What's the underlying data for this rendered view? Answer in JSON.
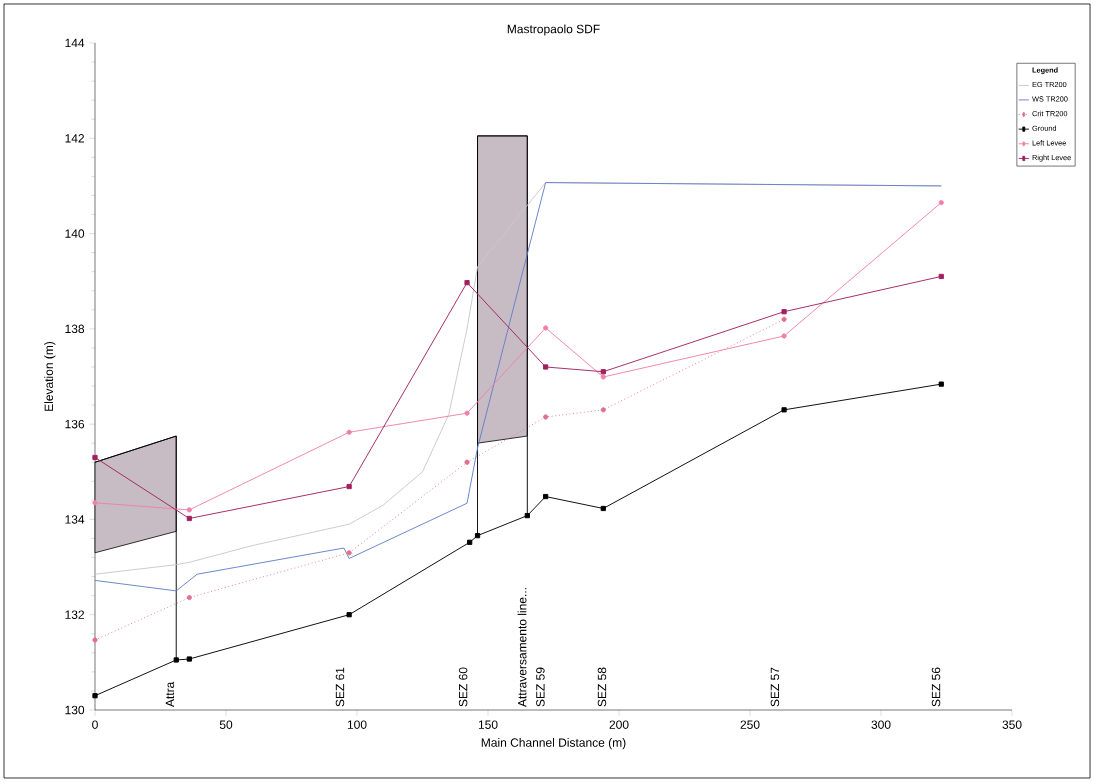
{
  "chart_data": {
    "type": "line",
    "title": "Mastropaolo SDF",
    "xlabel": "Main Channel Distance (m)",
    "ylabel": "Elevation (m)",
    "legend_title": "Legend",
    "legend": "top right",
    "xlim": [
      0,
      350
    ],
    "ylim": [
      130,
      144
    ],
    "xticks": [
      0,
      50,
      100,
      150,
      200,
      250,
      300,
      350
    ],
    "yticks": [
      130,
      132,
      134,
      136,
      138,
      140,
      142,
      144
    ],
    "grid": false,
    "series": [
      {
        "color": "#000000",
        "x": [
          0,
          31
        ],
        "values": [
          135.2,
          135.75
        ],
        "lower": [
          133.3,
          133.75
        ],
        "upper": [
          135.2,
          135.75
        ]
      },
      {
        "color": "#000000",
        "x": [
          146,
          165
        ],
        "values": [
          142.05,
          142.05
        ],
        "lower": [
          135.6,
          135.75
        ],
        "upper": [
          142.05,
          142.05
        ]
      },
      {
        "color": "#000000",
        "x": [
          31,
          31
        ],
        "values": [
          131.05,
          135.75
        ]
      },
      {
        "color": "#000000",
        "x": [
          146,
          146
        ],
        "values": [
          133.66,
          142.05
        ]
      },
      {
        "color": "#000000",
        "x": [
          165,
          165
        ],
        "values": [
          134.08,
          142.05
        ]
      },
      {
        "name": "EG  TR200",
        "color": "#c8c8c8",
        "marker": "none",
        "line_style": "solid",
        "x": [
          0,
          31,
          36,
          60,
          97,
          110,
          125,
          135,
          142,
          146,
          172,
          323
        ],
        "values": [
          132.85,
          133.05,
          133.1,
          133.45,
          133.9,
          134.3,
          135.0,
          136.2,
          138.0,
          139.3,
          141.07,
          141.0
        ]
      },
      {
        "name": "WS  TR200",
        "color": "#6080c8",
        "marker": "none",
        "line_style": "solid",
        "x": [
          0,
          31,
          39,
          95,
          97,
          142,
          146,
          172,
          323
        ],
        "values": [
          132.72,
          132.5,
          132.85,
          133.4,
          133.18,
          134.34,
          135.5,
          141.07,
          141.0
        ]
      },
      {
        "name": "Crit  TR200",
        "color": "#e07090",
        "marker": "circle",
        "line_style": "dotted",
        "x": [
          0,
          36,
          97,
          142,
          172,
          194,
          263
        ],
        "values": [
          131.47,
          132.36,
          133.3,
          135.2,
          136.15,
          136.3,
          138.2
        ]
      },
      {
        "name": "Ground",
        "color": "#000000",
        "marker": "square",
        "line_style": "solid",
        "x": [
          0,
          31,
          36,
          97,
          143,
          146,
          165,
          172,
          194,
          263,
          323
        ],
        "values": [
          130.3,
          131.05,
          131.07,
          132.0,
          133.52,
          133.66,
          134.08,
          134.48,
          134.23,
          136.3,
          136.84
        ]
      },
      {
        "name": "Left Levee",
        "color": "#f080a8",
        "marker": "circle",
        "line_style": "solid",
        "x": [
          0,
          36,
          97,
          142,
          172,
          194,
          263,
          323
        ],
        "values": [
          134.35,
          134.2,
          135.83,
          136.23,
          138.02,
          136.99,
          137.85,
          140.65
        ]
      },
      {
        "name": "Right Levee",
        "color": "#a02060",
        "marker": "square",
        "line_style": "solid",
        "x": [
          0,
          36,
          97,
          142,
          172,
          194,
          263,
          323
        ],
        "values": [
          135.3,
          134.02,
          134.69,
          138.97,
          137.2,
          137.1,
          138.36,
          139.1
        ]
      }
    ],
    "annotations": [
      "Attra",
      "SEZ 61",
      "SEZ 60",
      "Attraversamento line...",
      "SEZ 59",
      "SEZ 58",
      "SEZ 57",
      "SEZ 56"
    ]
  }
}
